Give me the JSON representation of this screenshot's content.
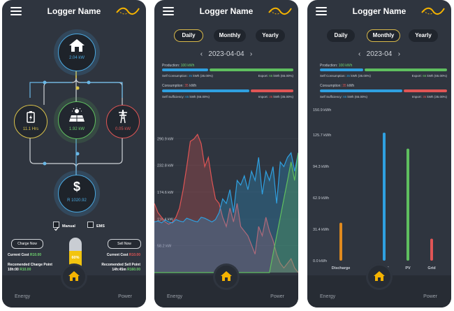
{
  "app": {
    "title": "Logger Name"
  },
  "footer": {
    "left": "Energy",
    "right": "Power"
  },
  "overview": {
    "home": {
      "value": "2.04 kW"
    },
    "battery": {
      "value": "11.1 Hrs"
    },
    "solar": {
      "value": "1.92 kW"
    },
    "grid": {
      "value": "0.05 kW"
    },
    "cost": {
      "value": "R 1020.92"
    },
    "mode": {
      "manual_label": "Manual",
      "ems_label": "EMS",
      "manual_checked": true,
      "ems_checked": false
    },
    "charge_button": "Charge Now",
    "sell_button": "Sell Now",
    "battery_percent_label": "60%",
    "battery_percent": 0.6,
    "current_cost_label_left": "Current Cost",
    "current_cost_value_left": "R10.00",
    "charge_point_label": "Recomended Charge Point",
    "charge_point_time": "10h:00",
    "charge_point_value": "R10.00",
    "current_cost_label_right": "Current Cost",
    "current_cost_value_right": "R10.00",
    "sell_point_label": "Recomended Sell Point",
    "sell_point_time": "14h:45m",
    "sell_point_value": "R160.00"
  },
  "daily": {
    "tabs": [
      "Daily",
      "Monthly",
      "Yearly"
    ],
    "active_tab": "Daily",
    "date": "2023-04-04",
    "production_label": "Production:",
    "production_value": "100 kWh",
    "self_consumption_label": "Self Consumption:",
    "self_consumption_value": "35",
    "self_consumption_unit": "kWh (35.00%)",
    "export_label": "Export:",
    "export_value": "65",
    "export_unit": "kWh (65.00%)",
    "consumption_label": "Consumption:",
    "consumption_value": "35",
    "consumption_unit": "kWh",
    "self_sufficiency_label": "Self Sufficiency:",
    "self_sufficiency_value": "65",
    "self_sufficiency_unit": "kWh (65.00%)",
    "import_label": "Import:",
    "import_value": "35",
    "import_unit": "kWh (35.00%)"
  },
  "monthly": {
    "tabs": [
      "Daily",
      "Monthly",
      "Yearly"
    ],
    "active_tab": "Monthly",
    "date": "2023-04",
    "production_label": "Production:",
    "production_value": "100 kWh",
    "self_consumption_label": "Self Consumption:",
    "self_consumption_value": "35",
    "self_consumption_unit": "kWh (35.00%)",
    "export_label": "Export:",
    "export_value": "65",
    "export_unit": "kWh (65.00%)",
    "consumption_label": "Consumption:",
    "consumption_value": "35",
    "consumption_unit": "kWh",
    "self_sufficiency_label": "Self Sufficiency:",
    "self_sufficiency_value": "65",
    "self_sufficiency_unit": "kWh (65.00%)",
    "import_label": "Import:",
    "import_value": "35",
    "import_unit": "kWh (35.00%)"
  },
  "colors": {
    "production": "#5fbf5f",
    "self": "#2fa0e0",
    "import": "#e05555",
    "accent": "#f5b301"
  },
  "chart_data": [
    {
      "type": "area",
      "title": "",
      "y_ticks": [
        "290.9 kW",
        "232.8 kW",
        "174.6 kW",
        "116.4 kW",
        "58.2 kW"
      ],
      "ylim": [
        0,
        349
      ],
      "x": [
        0,
        1,
        2,
        3,
        4,
        5,
        6,
        7,
        8,
        9,
        10,
        11,
        12,
        13,
        14,
        15,
        16,
        17,
        18,
        19,
        20,
        21,
        22,
        23,
        24,
        25,
        26,
        27,
        28,
        29,
        30,
        31,
        32,
        33,
        34,
        35,
        36,
        37,
        38,
        39,
        40
      ],
      "series": [
        {
          "color": "#e05555",
          "values": [
            150,
            130,
            120,
            110,
            105,
            110,
            120,
            140,
            180,
            230,
            285,
            290,
            300,
            280,
            230,
            250,
            200,
            160,
            150,
            120,
            100,
            140,
            110,
            150,
            100,
            90,
            80,
            60,
            40,
            100,
            80,
            120,
            90,
            70,
            40,
            20,
            10,
            20,
            30,
            10,
            0
          ]
        },
        {
          "color": "#2fa0e0",
          "values": [
            110,
            112,
            108,
            114,
            110,
            108,
            115,
            112,
            110,
            118,
            115,
            112,
            110,
            120,
            118,
            114,
            110,
            115,
            130,
            160,
            150,
            180,
            130,
            200,
            190,
            210,
            180,
            220,
            200,
            250,
            170,
            220,
            200,
            230,
            150,
            240,
            230,
            250,
            260,
            220,
            260
          ]
        },
        {
          "color": "#5fbf5f",
          "values": [
            0,
            0,
            0,
            0,
            0,
            0,
            0,
            0,
            0,
            0,
            0,
            0,
            0,
            0,
            0,
            0,
            0,
            0,
            0,
            0,
            0,
            0,
            0,
            0,
            0,
            0,
            0,
            0,
            0,
            0,
            0,
            0,
            0,
            40,
            80,
            120,
            160,
            200,
            240,
            200,
            260
          ]
        }
      ]
    },
    {
      "type": "bar",
      "title": "",
      "y_ticks": [
        "150.9 kWh",
        "125.7 kWh",
        "94.3 kWh",
        "62.9 kWh",
        "31.4 kWh",
        "0.0 kWh"
      ],
      "ylim": [
        0,
        150.9
      ],
      "categories": [
        "Discharge",
        "Load",
        "PV",
        "Grid"
      ],
      "values": [
        38,
        128,
        112,
        22
      ],
      "colors": [
        "#e08a1e",
        "#2fa0e0",
        "#5fbf5f",
        "#e05555"
      ]
    }
  ]
}
